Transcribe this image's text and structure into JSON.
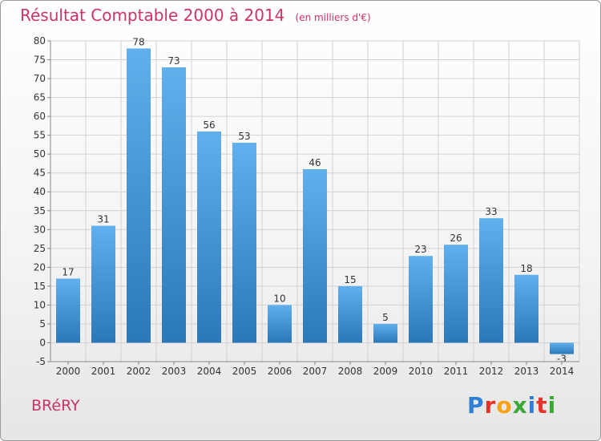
{
  "chart_data": {
    "type": "bar",
    "title": "Résultat Comptable 2000 à 2014",
    "subtitle": "(en milliers d'€)",
    "categories": [
      "2000",
      "2001",
      "2002",
      "2003",
      "2004",
      "2005",
      "2006",
      "2007",
      "2008",
      "2009",
      "2010",
      "2011",
      "2012",
      "2013",
      "2014"
    ],
    "values": [
      17,
      31,
      78,
      73,
      56,
      53,
      10,
      46,
      15,
      5,
      23,
      26,
      33,
      18,
      -3
    ],
    "ylim": [
      -5,
      80
    ],
    "yticks": [
      -5,
      0,
      5,
      10,
      15,
      20,
      25,
      30,
      35,
      40,
      45,
      50,
      55,
      60,
      65,
      70,
      75,
      80
    ],
    "xlabel": "",
    "ylabel": "",
    "grid": true
  },
  "footer": {
    "commune": "BRéRY",
    "logo_letters": [
      "P",
      "r",
      "o",
      "x",
      "i",
      "t",
      "i"
    ],
    "logo_colors": [
      "#2f7fd6",
      "#e6332a",
      "#f7a21b",
      "#3aa935",
      "#2f7fd6",
      "#e6332a",
      "#3aa935"
    ]
  },
  "colors": {
    "bar_top": "#5fb0ec",
    "bar_bottom": "#2b78b8",
    "grid": "#d2d2d2",
    "text": "#333333",
    "accent": "#cc3366"
  }
}
